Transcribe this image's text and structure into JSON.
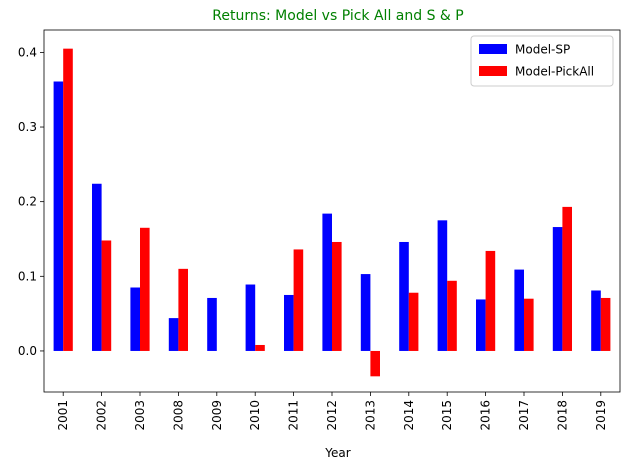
{
  "chart_data": {
    "type": "bar",
    "title": "Returns: Model vs Pick All and S & P",
    "title_color": "#008000",
    "xlabel": "Year",
    "ylabel": "",
    "categories": [
      "2001",
      "2002",
      "2003",
      "2008",
      "2009",
      "2010",
      "2011",
      "2012",
      "2013",
      "2014",
      "2015",
      "2016",
      "2017",
      "2018",
      "2019"
    ],
    "series": [
      {
        "name": "Model-SP",
        "color": "#0000ff",
        "values": [
          0.361,
          0.224,
          0.085,
          0.044,
          0.071,
          0.089,
          0.075,
          0.184,
          0.103,
          0.146,
          0.175,
          0.069,
          0.109,
          0.166,
          0.081
        ]
      },
      {
        "name": "Model-PickAll",
        "color": "#ff0000",
        "values": [
          0.405,
          0.148,
          0.165,
          0.11,
          0.0,
          0.008,
          0.136,
          0.146,
          -0.034,
          0.078,
          0.094,
          0.134,
          0.07,
          0.193,
          0.071
        ]
      }
    ],
    "ylim": [
      -0.055,
      0.43
    ],
    "yticks": [
      "0.0",
      "0.1",
      "0.2",
      "0.3",
      "0.4"
    ],
    "ytick_values": [
      0.0,
      0.1,
      0.2,
      0.3,
      0.4
    ],
    "legend_position": "top-right",
    "grid": false
  }
}
